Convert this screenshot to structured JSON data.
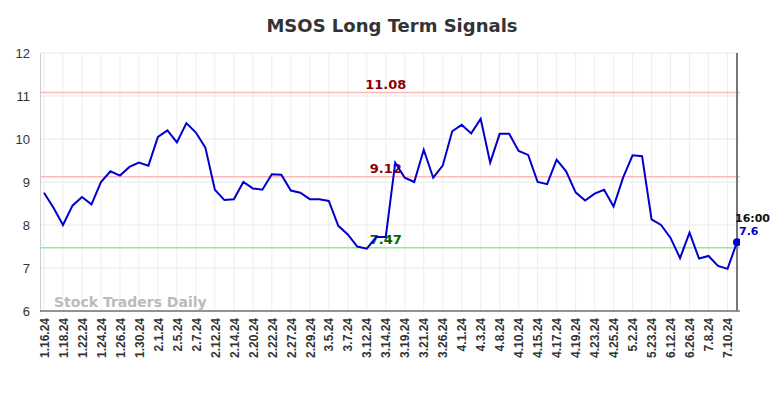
{
  "chart_data": {
    "type": "line",
    "title": "MSOS Long Term Signals",
    "watermark": "Stock Traders Daily",
    "categories": [
      "1.16.24",
      null,
      "1.18.24",
      null,
      "1.22.24",
      null,
      "1.24.24",
      null,
      "1.26.24",
      null,
      "1.30.24",
      null,
      "2.1.24",
      null,
      "2.5.24",
      null,
      "2.7.24",
      null,
      "2.12.24",
      null,
      "2.14.24",
      null,
      "2.20.24",
      null,
      "2.22.24",
      null,
      "2.27.24",
      null,
      "2.29.24",
      null,
      "3.5.24",
      null,
      "3.7.24",
      null,
      "3.12.24",
      null,
      "3.14.24",
      null,
      "3.19.24",
      null,
      "3.21.24",
      null,
      "3.26.24",
      null,
      "4.1.24",
      null,
      "4.3.24",
      null,
      "4.8.24",
      null,
      "4.10.24",
      null,
      "4.15.24",
      null,
      "4.17.24",
      null,
      "4.19.24",
      null,
      "4.23.24",
      null,
      "4.25.24",
      null,
      "5.2.24",
      null,
      "5.23.24",
      null,
      "6.12.24",
      null,
      "6.26.24",
      null,
      "7.8.24",
      null,
      "7.10.24",
      null
    ],
    "series": [
      {
        "name": "MSOS",
        "color": "#0000cc",
        "values": [
          8.75,
          8.4,
          8.0,
          8.45,
          8.65,
          8.48,
          9.0,
          9.25,
          9.15,
          9.35,
          9.45,
          9.38,
          10.05,
          10.2,
          9.92,
          10.37,
          10.15,
          9.8,
          8.82,
          8.58,
          8.6,
          9.0,
          8.85,
          8.82,
          9.18,
          9.17,
          8.8,
          8.75,
          8.6,
          8.6,
          8.56,
          7.98,
          7.78,
          7.5,
          7.45,
          7.72,
          7.72,
          9.45,
          9.1,
          9.0,
          9.75,
          9.1,
          9.38,
          10.18,
          10.33,
          10.13,
          10.47,
          9.45,
          10.12,
          10.12,
          9.72,
          9.63,
          9.0,
          8.95,
          9.52,
          9.25,
          8.76,
          8.57,
          8.73,
          8.82,
          8.43,
          9.1,
          9.62,
          9.6,
          8.13,
          8.0,
          7.7,
          7.23,
          7.82,
          7.22,
          7.28,
          7.05,
          6.98,
          7.6
        ]
      }
    ],
    "reference_lines": [
      {
        "value": 11.08,
        "label": "11.08",
        "color": "#ffb8b8",
        "label_color": "#8b0000"
      },
      {
        "value": 9.12,
        "label": "9.12",
        "color": "#ffb8b8",
        "label_color": "#8b0000"
      },
      {
        "value": 7.47,
        "label": "7.47",
        "color": "#90ee90",
        "label_color": "#006400"
      }
    ],
    "end_labels": {
      "time": "16:00",
      "value": "7.6"
    },
    "ylim": [
      6,
      12
    ],
    "yticks": [
      6,
      7,
      8,
      9,
      10,
      11,
      12
    ],
    "grid": true
  }
}
